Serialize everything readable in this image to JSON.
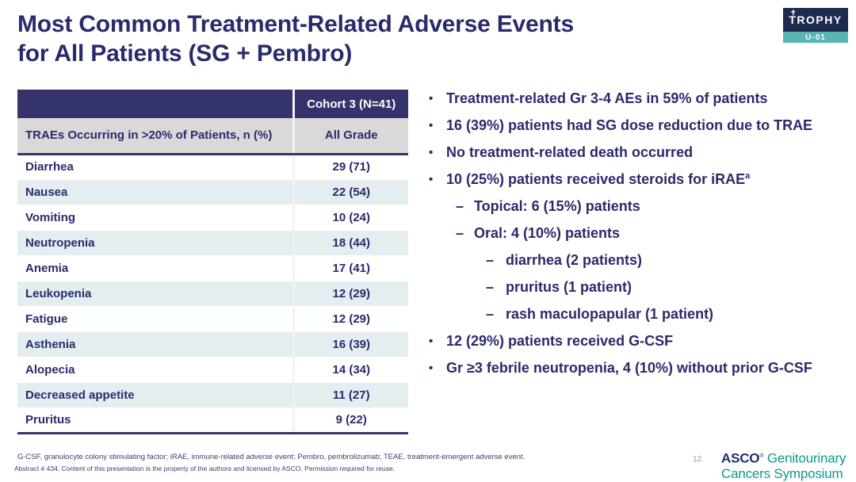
{
  "slide": {
    "title_line1": "Most Common Treatment-Related Adverse Events",
    "title_line2": "for All Patients (SG + Pembro)",
    "page_number": "12"
  },
  "logo": {
    "name": "TROPHY",
    "sub": "U-01",
    "cross_glyph": "✝",
    "navy": "#1f2a50",
    "teal": "#57b6b2"
  },
  "table": {
    "cohort_header": "Cohort 3 (N=41)",
    "col1_header": "TRAEs Occurring in >20% of Patients, n (%)",
    "col2_header": "All Grade",
    "rows": [
      {
        "label": "Diarrhea",
        "value": "29 (71)"
      },
      {
        "label": "Nausea",
        "value": "22 (54)"
      },
      {
        "label": "Vomiting",
        "value": "10 (24)"
      },
      {
        "label": "Neutropenia",
        "value": "18 (44)"
      },
      {
        "label": "Anemia",
        "value": "17 (41)"
      },
      {
        "label": "Leukopenia",
        "value": "12 (29)"
      },
      {
        "label": "Fatigue",
        "value": "12 (29)"
      },
      {
        "label": "Asthenia",
        "value": "16 (39)"
      },
      {
        "label": "Alopecia",
        "value": "14 (34)"
      },
      {
        "label": "Decreased appetite",
        "value": "11 (27)"
      },
      {
        "label": "Pruritus",
        "value": "9 (22)"
      }
    ]
  },
  "bullet_markers": {
    "1": "•",
    "2": "–",
    "3": "–"
  },
  "bullets": [
    {
      "level": 1,
      "text": "Treatment-related Gr 3-4 AEs in 59% of patients"
    },
    {
      "level": 1,
      "text": "16 (39%) patients had SG dose reduction due to TRAE"
    },
    {
      "level": 1,
      "text": "No treatment-related death occurred"
    },
    {
      "level": 1,
      "text": "10 (25%) patients received steroids for iRAE",
      "sup": "a"
    },
    {
      "level": 2,
      "text": "Topical: 6 (15%) patients"
    },
    {
      "level": 2,
      "text": "Oral: 4 (10%) patients"
    },
    {
      "level": 3,
      "text": "diarrhea (2 patients)"
    },
    {
      "level": 3,
      "text": "pruritus (1 patient)"
    },
    {
      "level": 3,
      "text": "rash maculopapular (1 patient)"
    },
    {
      "level": 1,
      "text": "12 (29%) patients received G-CSF"
    },
    {
      "level": 1,
      "text": "Gr ≥3 febrile neutropenia, 4 (10%) without prior G-CSF"
    }
  ],
  "footer": {
    "line1": "G-CSF, granulocyte colony stimulating factor; iRAE, immune-related adverse event; Pembro, pembrolizumab; TEAE, treatment-emergent adverse event.",
    "line2": "Abstract # 434. Content of this presentation is the property of the authors and licensed by ASCO. Permission required for reuse."
  },
  "branding": {
    "asco": "ASCO",
    "reg_mark": "®",
    "symposium_inline": "Genitourinary",
    "symposium_line2": "Cancers Symposium"
  },
  "colors": {
    "navy_text": "#2a2a6c",
    "table_header_navy": "#34336b",
    "header_gray_row": "#d9d9d9",
    "alt_row_blue": "#e4eef1",
    "asco_navy": "#1c2f6e",
    "asco_teal": "#10998c"
  }
}
